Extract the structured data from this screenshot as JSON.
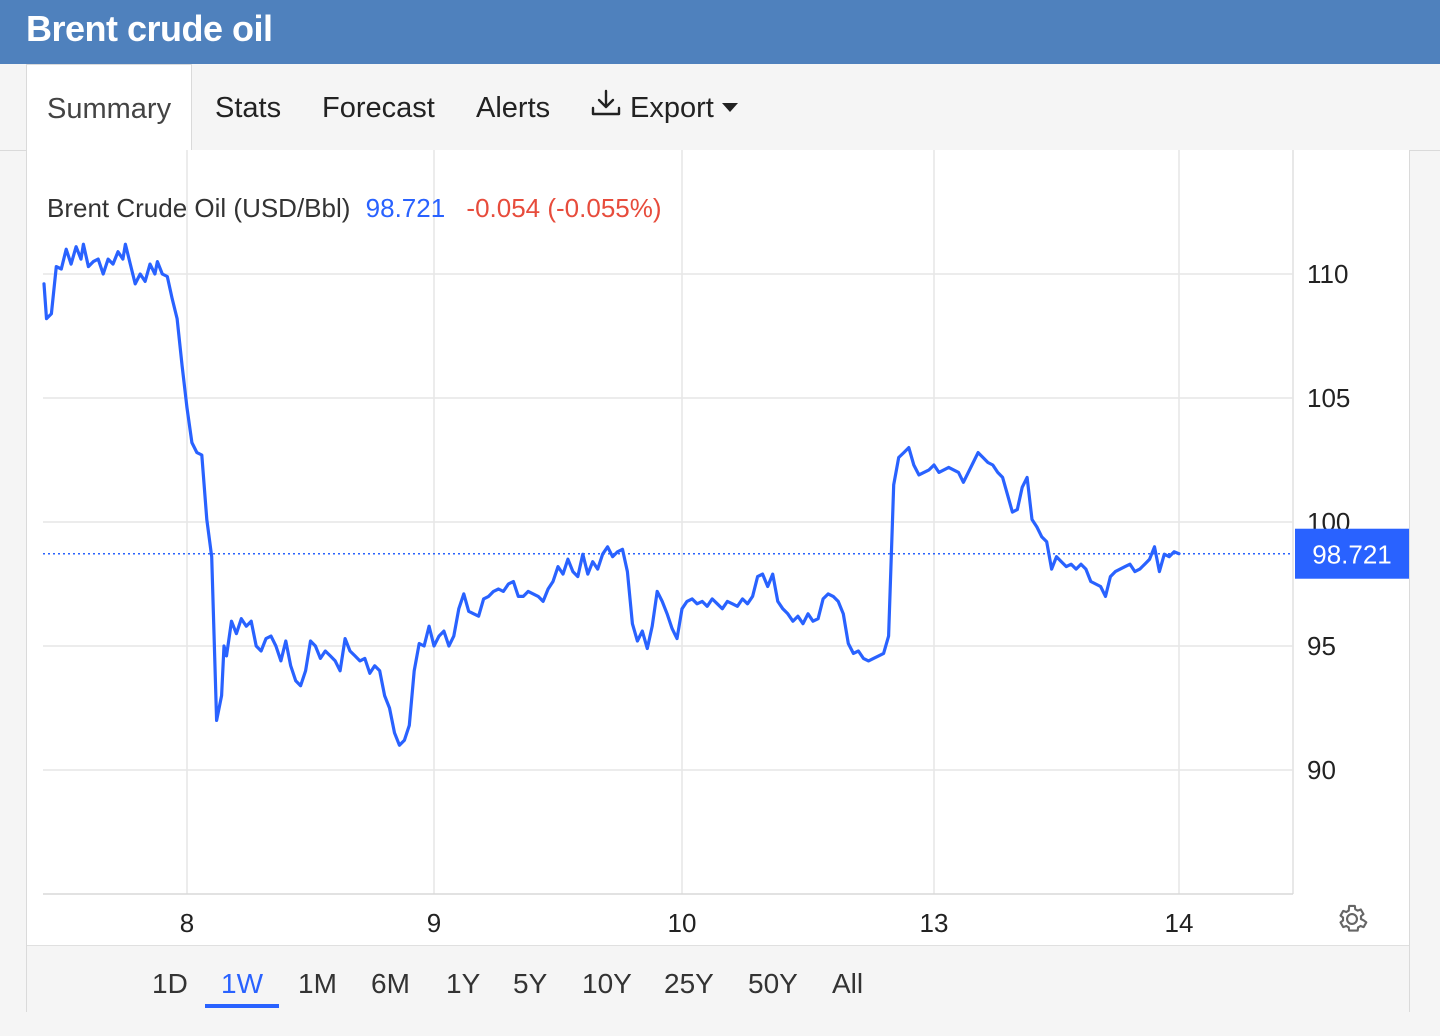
{
  "header": {
    "title": "Brent crude oil"
  },
  "tabs": [
    {
      "label": "Summary",
      "active": true
    },
    {
      "label": "Stats"
    },
    {
      "label": "Forecast"
    },
    {
      "label": "Alerts"
    },
    {
      "label": "Export",
      "icon": "download-icon",
      "dropdown": true
    }
  ],
  "quote": {
    "name": "Brent Crude Oil (USD/Bbl)",
    "price": "98.721",
    "change": "-0.054 (-0.055%)"
  },
  "colors": {
    "header": "#4f81bd",
    "line": "#2962ff",
    "price": "#2962ff",
    "negative": "#e74c3c",
    "grid": "#e6e6e6"
  },
  "ranges": {
    "items": [
      "1D",
      "1W",
      "1M",
      "6M",
      "1Y",
      "5Y",
      "10Y",
      "25Y",
      "50Y",
      "All"
    ],
    "active": "1W"
  },
  "chart_data": {
    "type": "line",
    "title": "Brent Crude Oil (USD/Bbl)",
    "y_ticks": [
      90,
      95,
      100,
      105,
      110
    ],
    "ylim": [
      85,
      115
    ],
    "x_ticks": [
      {
        "label": "8",
        "t": 1.0
      },
      {
        "label": "9",
        "t": 2.0
      },
      {
        "label": "10",
        "t": 3.0
      },
      {
        "label": "13",
        "t": 4.0
      },
      {
        "label": "14",
        "t": 5.0
      }
    ],
    "xlim": [
      0.42,
      5.47
    ],
    "last_value": 98.721,
    "last_value_label": "98.721",
    "grid": true,
    "series": [
      {
        "points": [
          [
            0.42,
            109.6
          ],
          [
            0.43,
            108.2
          ],
          [
            0.45,
            108.4
          ],
          [
            0.47,
            110.3
          ],
          [
            0.49,
            110.2
          ],
          [
            0.51,
            111.0
          ],
          [
            0.53,
            110.4
          ],
          [
            0.55,
            111.1
          ],
          [
            0.57,
            110.6
          ],
          [
            0.58,
            111.2
          ],
          [
            0.6,
            110.3
          ],
          [
            0.62,
            110.5
          ],
          [
            0.64,
            110.6
          ],
          [
            0.66,
            110.0
          ],
          [
            0.68,
            110.6
          ],
          [
            0.7,
            110.4
          ],
          [
            0.72,
            110.9
          ],
          [
            0.74,
            110.6
          ],
          [
            0.75,
            111.2
          ],
          [
            0.77,
            110.4
          ],
          [
            0.79,
            109.6
          ],
          [
            0.81,
            110.0
          ],
          [
            0.83,
            109.7
          ],
          [
            0.85,
            110.4
          ],
          [
            0.87,
            110.0
          ],
          [
            0.88,
            110.5
          ],
          [
            0.9,
            110.0
          ],
          [
            0.92,
            109.9
          ],
          [
            0.94,
            109.0
          ],
          [
            0.96,
            108.2
          ],
          [
            0.98,
            106.3
          ],
          [
            1.0,
            104.6
          ],
          [
            1.02,
            103.2
          ],
          [
            1.04,
            102.8
          ],
          [
            1.06,
            102.7
          ],
          [
            1.08,
            100.1
          ],
          [
            1.1,
            98.6
          ],
          [
            1.12,
            92.0
          ],
          [
            1.14,
            93.0
          ],
          [
            1.15,
            95.0
          ],
          [
            1.16,
            94.6
          ],
          [
            1.18,
            96.0
          ],
          [
            1.2,
            95.5
          ],
          [
            1.22,
            96.1
          ],
          [
            1.24,
            95.8
          ],
          [
            1.26,
            96.0
          ],
          [
            1.28,
            95.0
          ],
          [
            1.3,
            94.8
          ],
          [
            1.32,
            95.3
          ],
          [
            1.34,
            95.4
          ],
          [
            1.36,
            95.0
          ],
          [
            1.38,
            94.4
          ],
          [
            1.4,
            95.2
          ],
          [
            1.42,
            94.2
          ],
          [
            1.44,
            93.6
          ],
          [
            1.46,
            93.4
          ],
          [
            1.48,
            94.0
          ],
          [
            1.5,
            95.2
          ],
          [
            1.52,
            95.0
          ],
          [
            1.54,
            94.5
          ],
          [
            1.56,
            94.8
          ],
          [
            1.58,
            94.6
          ],
          [
            1.6,
            94.4
          ],
          [
            1.62,
            94.0
          ],
          [
            1.64,
            95.3
          ],
          [
            1.66,
            94.8
          ],
          [
            1.68,
            94.6
          ],
          [
            1.7,
            94.4
          ],
          [
            1.72,
            94.5
          ],
          [
            1.74,
            93.9
          ],
          [
            1.76,
            94.2
          ],
          [
            1.78,
            94.0
          ],
          [
            1.8,
            93.0
          ],
          [
            1.82,
            92.5
          ],
          [
            1.84,
            91.5
          ],
          [
            1.86,
            91.0
          ],
          [
            1.88,
            91.2
          ],
          [
            1.9,
            91.8
          ],
          [
            1.92,
            94.0
          ],
          [
            1.94,
            95.1
          ],
          [
            1.96,
            95.0
          ],
          [
            1.98,
            95.8
          ],
          [
            2.0,
            95.0
          ],
          [
            2.02,
            95.4
          ],
          [
            2.04,
            95.6
          ],
          [
            2.06,
            95.0
          ],
          [
            2.08,
            95.4
          ],
          [
            2.1,
            96.5
          ],
          [
            2.12,
            97.1
          ],
          [
            2.14,
            96.4
          ],
          [
            2.16,
            96.3
          ],
          [
            2.18,
            96.2
          ],
          [
            2.2,
            96.9
          ],
          [
            2.22,
            97.0
          ],
          [
            2.24,
            97.2
          ],
          [
            2.26,
            97.3
          ],
          [
            2.28,
            97.2
          ],
          [
            2.3,
            97.5
          ],
          [
            2.32,
            97.6
          ],
          [
            2.34,
            97.0
          ],
          [
            2.36,
            97.0
          ],
          [
            2.38,
            97.2
          ],
          [
            2.4,
            97.1
          ],
          [
            2.42,
            97.0
          ],
          [
            2.44,
            96.8
          ],
          [
            2.46,
            97.3
          ],
          [
            2.48,
            97.6
          ],
          [
            2.5,
            98.2
          ],
          [
            2.52,
            97.9
          ],
          [
            2.54,
            98.5
          ],
          [
            2.56,
            98.0
          ],
          [
            2.58,
            97.8
          ],
          [
            2.6,
            98.7
          ],
          [
            2.62,
            97.9
          ],
          [
            2.64,
            98.4
          ],
          [
            2.66,
            98.1
          ],
          [
            2.68,
            98.7
          ],
          [
            2.7,
            99.0
          ],
          [
            2.72,
            98.6
          ],
          [
            2.74,
            98.8
          ],
          [
            2.76,
            98.9
          ],
          [
            2.78,
            98.0
          ],
          [
            2.8,
            95.9
          ],
          [
            2.82,
            95.2
          ],
          [
            2.84,
            95.6
          ],
          [
            2.86,
            94.9
          ],
          [
            2.88,
            95.8
          ],
          [
            2.9,
            97.2
          ],
          [
            2.92,
            96.8
          ],
          [
            2.94,
            96.3
          ],
          [
            2.96,
            95.7
          ],
          [
            2.98,
            95.3
          ],
          [
            3.0,
            96.5
          ],
          [
            3.02,
            96.8
          ],
          [
            3.04,
            96.9
          ],
          [
            3.06,
            96.7
          ],
          [
            3.08,
            96.8
          ],
          [
            3.1,
            96.6
          ],
          [
            3.12,
            96.9
          ],
          [
            3.14,
            96.7
          ],
          [
            3.16,
            96.5
          ],
          [
            3.18,
            96.8
          ],
          [
            3.2,
            96.7
          ],
          [
            3.22,
            96.6
          ],
          [
            3.24,
            96.9
          ],
          [
            3.26,
            96.7
          ],
          [
            3.28,
            97.0
          ],
          [
            3.3,
            97.8
          ],
          [
            3.32,
            97.9
          ],
          [
            3.34,
            97.4
          ],
          [
            3.36,
            97.9
          ],
          [
            3.38,
            96.8
          ],
          [
            3.4,
            96.5
          ],
          [
            3.42,
            96.3
          ],
          [
            3.44,
            96.0
          ],
          [
            3.46,
            96.2
          ],
          [
            3.48,
            95.9
          ],
          [
            3.5,
            96.3
          ],
          [
            3.52,
            96.0
          ],
          [
            3.54,
            96.1
          ],
          [
            3.56,
            96.9
          ],
          [
            3.58,
            97.1
          ],
          [
            3.6,
            97.0
          ],
          [
            3.62,
            96.8
          ],
          [
            3.64,
            96.3
          ],
          [
            3.66,
            95.1
          ],
          [
            3.68,
            94.7
          ],
          [
            3.7,
            94.8
          ],
          [
            3.72,
            94.5
          ],
          [
            3.74,
            94.4
          ],
          [
            3.76,
            94.5
          ],
          [
            3.78,
            94.6
          ],
          [
            3.8,
            94.7
          ],
          [
            3.82,
            95.4
          ],
          [
            3.84,
            101.5
          ],
          [
            3.86,
            102.6
          ],
          [
            3.88,
            102.8
          ],
          [
            3.9,
            103.0
          ],
          [
            3.92,
            102.3
          ],
          [
            3.94,
            101.9
          ],
          [
            3.96,
            102.0
          ],
          [
            3.98,
            102.1
          ],
          [
            4.0,
            102.3
          ],
          [
            4.02,
            102.0
          ],
          [
            4.04,
            102.1
          ],
          [
            4.06,
            102.2
          ],
          [
            4.08,
            102.1
          ],
          [
            4.1,
            102.0
          ],
          [
            4.12,
            101.6
          ],
          [
            4.14,
            102.0
          ],
          [
            4.16,
            102.4
          ],
          [
            4.18,
            102.8
          ],
          [
            4.2,
            102.6
          ],
          [
            4.22,
            102.4
          ],
          [
            4.24,
            102.3
          ],
          [
            4.26,
            102.0
          ],
          [
            4.28,
            101.8
          ],
          [
            4.3,
            101.1
          ],
          [
            4.32,
            100.4
          ],
          [
            4.34,
            100.5
          ],
          [
            4.36,
            101.4
          ],
          [
            4.38,
            101.8
          ],
          [
            4.4,
            100.1
          ],
          [
            4.42,
            99.8
          ],
          [
            4.44,
            99.4
          ],
          [
            4.46,
            99.2
          ],
          [
            4.48,
            98.1
          ],
          [
            4.5,
            98.6
          ],
          [
            4.52,
            98.4
          ],
          [
            4.54,
            98.2
          ],
          [
            4.56,
            98.3
          ],
          [
            4.58,
            98.1
          ],
          [
            4.6,
            98.3
          ],
          [
            4.62,
            98.1
          ],
          [
            4.64,
            97.6
          ],
          [
            4.66,
            97.5
          ],
          [
            4.68,
            97.4
          ],
          [
            4.7,
            97.0
          ],
          [
            4.72,
            97.8
          ],
          [
            4.74,
            98.0
          ],
          [
            4.76,
            98.1
          ],
          [
            4.78,
            98.2
          ],
          [
            4.8,
            98.3
          ],
          [
            4.82,
            98.0
          ],
          [
            4.84,
            98.1
          ],
          [
            4.86,
            98.3
          ],
          [
            4.88,
            98.5
          ],
          [
            4.9,
            99.0
          ],
          [
            4.92,
            98.0
          ],
          [
            4.94,
            98.7
          ],
          [
            4.96,
            98.6
          ],
          [
            4.98,
            98.8
          ],
          [
            5.0,
            98.721
          ]
        ]
      }
    ]
  }
}
